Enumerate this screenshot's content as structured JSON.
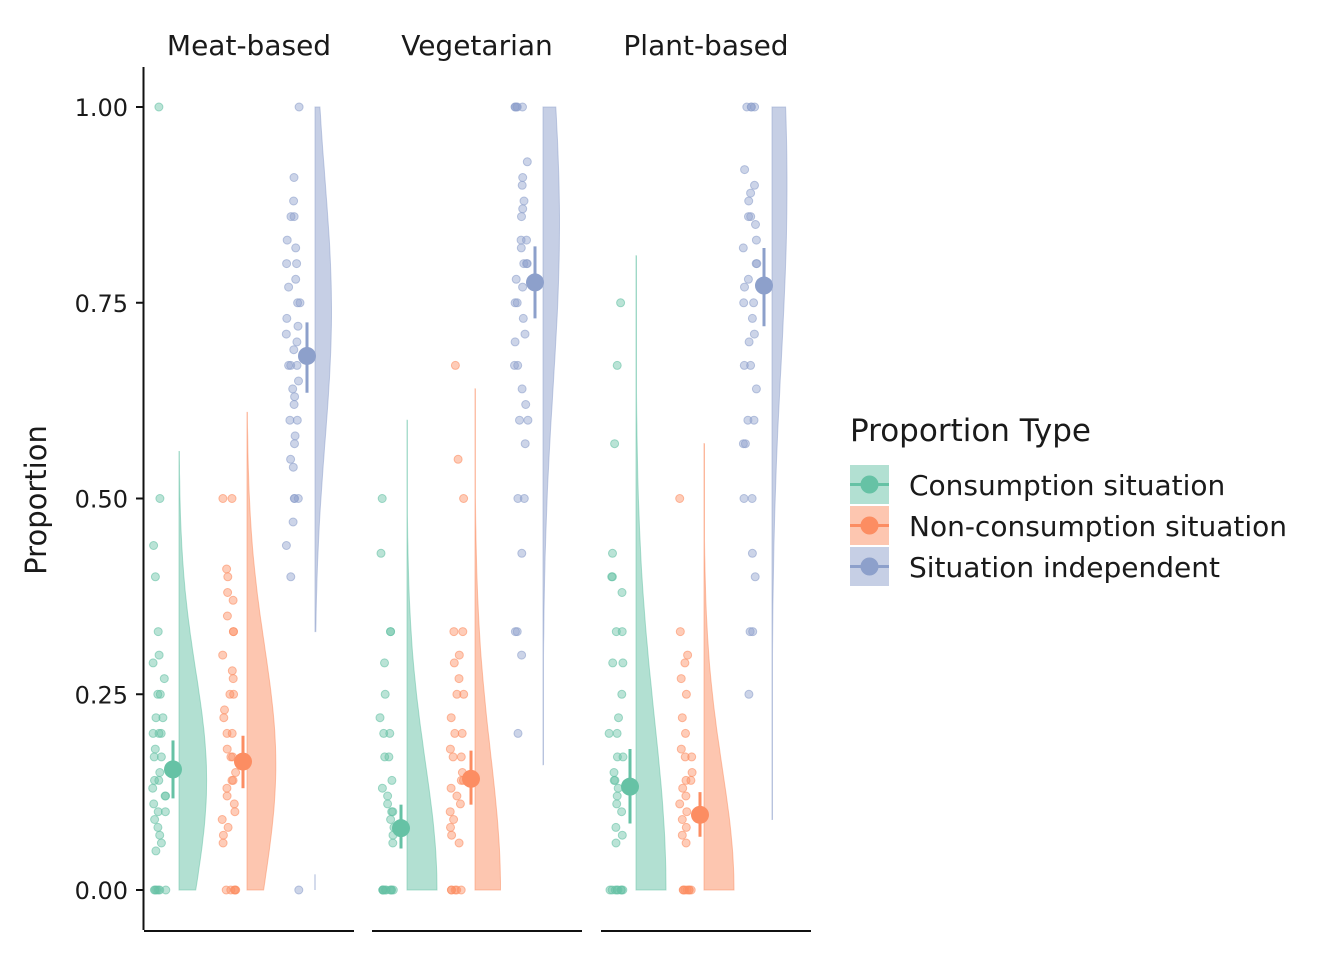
{
  "chart_data": {
    "type": "raincloud",
    "ylabel": "Proportion",
    "ylim": [
      0,
      1
    ],
    "yticks": [
      "0.00",
      "0.25",
      "0.50",
      "0.75",
      "1.00"
    ],
    "ytick_values": [
      0,
      0.25,
      0.5,
      0.75,
      1.0
    ],
    "panels": [
      "Meat-based",
      "Vegetarian",
      "Plant-based"
    ],
    "legend": {
      "title": "Proportion Type",
      "position": "right",
      "entries": [
        "Consumption situation",
        "Non-consumption situation",
        "Situation independent"
      ]
    },
    "colors": {
      "Consumption situation": "#66c2a5",
      "Non-consumption situation": "#fc8d62",
      "Situation independent": "#8da0cb"
    },
    "series": [
      {
        "panel": "Meat-based",
        "type_index": 0,
        "mean": 0.154,
        "ci": [
          0.117,
          0.191
        ],
        "points": [
          1.0,
          0.5,
          0.44,
          0.4,
          0.33,
          0.3,
          0.29,
          0.27,
          0.25,
          0.25,
          0.22,
          0.22,
          0.2,
          0.2,
          0.2,
          0.18,
          0.17,
          0.17,
          0.15,
          0.14,
          0.14,
          0.13,
          0.12,
          0.12,
          0.11,
          0.1,
          0.1,
          0.09,
          0.08,
          0.07,
          0.06,
          0.05,
          0.0,
          0.0,
          0.0,
          0.0,
          0.0,
          0.0
        ],
        "density": {
          "max": 0.56,
          "peak": 0.14,
          "pw": 0.92
        }
      },
      {
        "panel": "Meat-based",
        "type_index": 1,
        "mean": 0.164,
        "ci": [
          0.13,
          0.197
        ],
        "points": [
          0.5,
          0.5,
          0.41,
          0.4,
          0.38,
          0.37,
          0.35,
          0.33,
          0.33,
          0.3,
          0.28,
          0.27,
          0.25,
          0.25,
          0.23,
          0.22,
          0.2,
          0.2,
          0.18,
          0.17,
          0.17,
          0.15,
          0.14,
          0.14,
          0.13,
          0.12,
          0.11,
          0.1,
          0.09,
          0.08,
          0.07,
          0.06,
          0.0,
          0.0,
          0.0,
          0.0,
          0.0
        ],
        "density": {
          "max": 0.61,
          "peak": 0.16,
          "pw": 0.96
        }
      },
      {
        "panel": "Meat-based",
        "type_index": 2,
        "mean": 0.682,
        "ci": [
          0.635,
          0.725
        ],
        "points": [
          1.0,
          0.91,
          0.88,
          0.86,
          0.86,
          0.83,
          0.82,
          0.8,
          0.8,
          0.78,
          0.77,
          0.75,
          0.75,
          0.73,
          0.72,
          0.71,
          0.7,
          0.69,
          0.67,
          0.67,
          0.67,
          0.65,
          0.64,
          0.63,
          0.62,
          0.6,
          0.6,
          0.58,
          0.57,
          0.55,
          0.54,
          0.5,
          0.5,
          0.5,
          0.47,
          0.44,
          0.4,
          0.0
        ],
        "density": {
          "max": 1.0,
          "min": 0.33,
          "peak": 0.74,
          "pw": 0.55,
          "tail": 0.02
        }
      },
      {
        "panel": "Vegetarian",
        "type_index": 0,
        "mean": 0.079,
        "ci": [
          0.053,
          0.109
        ],
        "points": [
          0.5,
          0.43,
          0.33,
          0.33,
          0.29,
          0.25,
          0.22,
          0.2,
          0.2,
          0.17,
          0.17,
          0.14,
          0.13,
          0.12,
          0.11,
          0.1,
          0.1,
          0.09,
          0.08,
          0.07,
          0.06,
          0.0,
          0.0,
          0.0,
          0.0,
          0.0,
          0.0,
          0.0,
          0.0,
          0.0,
          0.0
        ],
        "density": {
          "max": 0.6,
          "peak": 0.0,
          "pw": 1.0
        }
      },
      {
        "panel": "Vegetarian",
        "type_index": 1,
        "mean": 0.142,
        "ci": [
          0.109,
          0.178
        ],
        "points": [
          0.67,
          0.55,
          0.5,
          0.33,
          0.33,
          0.3,
          0.29,
          0.27,
          0.25,
          0.25,
          0.22,
          0.2,
          0.2,
          0.18,
          0.17,
          0.17,
          0.15,
          0.14,
          0.14,
          0.13,
          0.12,
          0.11,
          0.1,
          0.09,
          0.08,
          0.07,
          0.06,
          0.0,
          0.0,
          0.0,
          0.0,
          0.0
        ],
        "density": {
          "max": 0.64,
          "peak": 0.0,
          "pw": 0.85
        }
      },
      {
        "panel": "Vegetarian",
        "type_index": 2,
        "mean": 0.776,
        "ci": [
          0.73,
          0.822
        ],
        "points": [
          1.0,
          1.0,
          1.0,
          1.0,
          1.0,
          0.93,
          0.91,
          0.9,
          0.88,
          0.87,
          0.86,
          0.83,
          0.83,
          0.82,
          0.8,
          0.8,
          0.8,
          0.78,
          0.77,
          0.75,
          0.75,
          0.73,
          0.71,
          0.7,
          0.67,
          0.67,
          0.64,
          0.62,
          0.6,
          0.6,
          0.57,
          0.5,
          0.5,
          0.43,
          0.33,
          0.33,
          0.3,
          0.2
        ],
        "density": {
          "max": 1.0,
          "min": 0.16,
          "peak": 0.85,
          "pw": 0.55
        }
      },
      {
        "panel": "Plant-based",
        "type_index": 0,
        "mean": 0.132,
        "ci": [
          0.085,
          0.18
        ],
        "points": [
          0.75,
          0.67,
          0.57,
          0.43,
          0.4,
          0.4,
          0.38,
          0.33,
          0.33,
          0.29,
          0.29,
          0.25,
          0.22,
          0.2,
          0.2,
          0.17,
          0.17,
          0.15,
          0.14,
          0.14,
          0.13,
          0.12,
          0.11,
          0.1,
          0.08,
          0.07,
          0.06,
          0.0,
          0.0,
          0.0,
          0.0,
          0.0,
          0.0,
          0.0,
          0.0
        ],
        "density": {
          "max": 0.81,
          "peak": 0.0,
          "pw": 1.0
        }
      },
      {
        "panel": "Plant-based",
        "type_index": 1,
        "mean": 0.096,
        "ci": [
          0.068,
          0.125
        ],
        "points": [
          0.5,
          0.33,
          0.3,
          0.29,
          0.27,
          0.25,
          0.22,
          0.2,
          0.18,
          0.17,
          0.17,
          0.15,
          0.14,
          0.14,
          0.13,
          0.12,
          0.11,
          0.1,
          0.09,
          0.08,
          0.07,
          0.06,
          0.0,
          0.0,
          0.0,
          0.0,
          0.0,
          0.0,
          0.0
        ],
        "density": {
          "max": 0.57,
          "peak": 0.0,
          "pw": 1.0
        }
      },
      {
        "panel": "Plant-based",
        "type_index": 2,
        "mean": 0.772,
        "ci": [
          0.72,
          0.82
        ],
        "points": [
          1.0,
          1.0,
          1.0,
          1.0,
          0.92,
          0.9,
          0.89,
          0.88,
          0.86,
          0.86,
          0.85,
          0.83,
          0.82,
          0.8,
          0.8,
          0.78,
          0.77,
          0.75,
          0.75,
          0.73,
          0.71,
          0.7,
          0.67,
          0.67,
          0.64,
          0.6,
          0.6,
          0.57,
          0.57,
          0.5,
          0.5,
          0.43,
          0.4,
          0.33,
          0.33,
          0.25
        ],
        "density": {
          "max": 1.0,
          "min": 0.09,
          "peak": 0.9,
          "pw": 0.5
        }
      }
    ]
  }
}
